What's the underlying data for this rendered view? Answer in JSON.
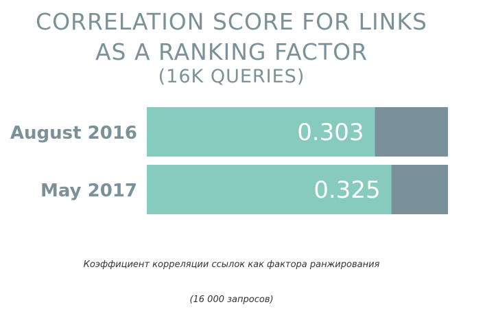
{
  "chart_data": {
    "type": "bar",
    "orientation": "horizontal",
    "title": "CORRELATION SCORE FOR LINKS",
    "title_line_2": "AS A RANKING FACTOR",
    "subtitle": "(16K QUERIES)",
    "categories": [
      "August 2016",
      "May 2017"
    ],
    "values": [
      0.303,
      0.325
    ],
    "value_labels": [
      "0.303",
      "0.325"
    ],
    "xlim": [
      0,
      0.4
    ],
    "grid": false,
    "legend": "none",
    "colors": {
      "value": "#87cbbf",
      "remainder": "#7b9199",
      "text": "#7b9199",
      "value_text": "#ffffff"
    }
  },
  "caption": {
    "line_1": "Коэффициент корреляции ссылок как фактора ранжирования",
    "line_2": "(16 000 запросов)"
  }
}
